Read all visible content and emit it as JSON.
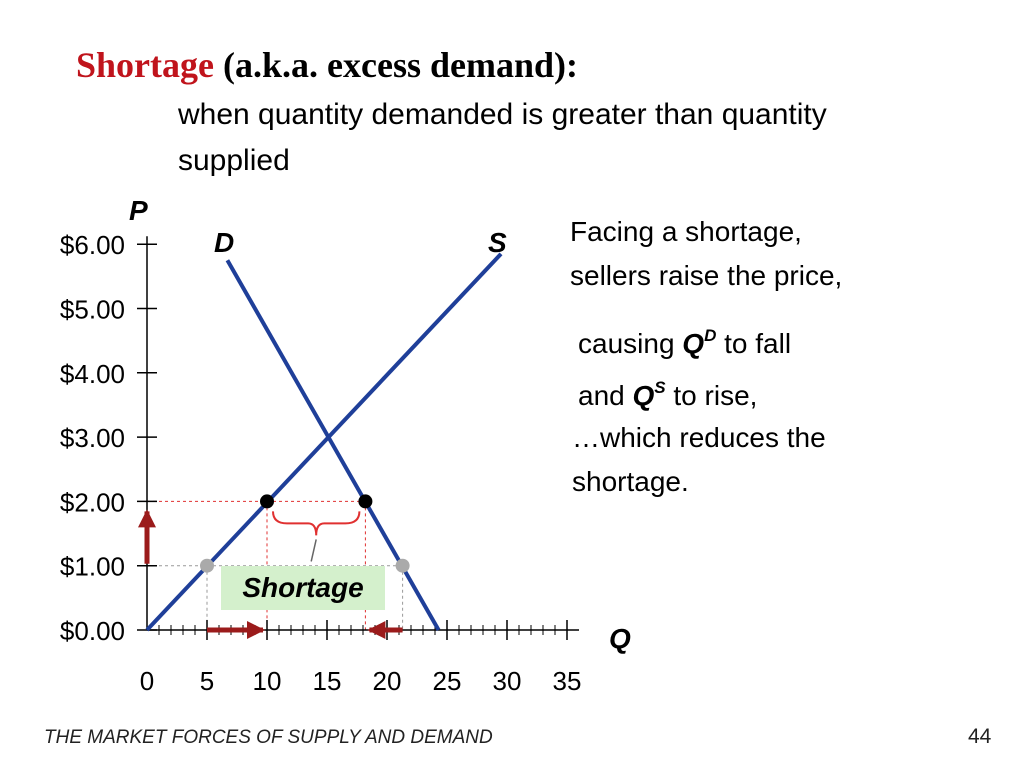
{
  "slide": {
    "title_term": "Shortage",
    "title_rest": " (a.k.a. excess demand):",
    "definition": "when quantity demanded is greater than quantity supplied",
    "text_block1": [
      "Facing a shortage,",
      "sellers raise the price,"
    ],
    "text_block2": {
      "line1_pre": "causing ",
      "line1_q": "Q",
      "line1_sup": "D",
      "line1_post": " to fall",
      "line2_pre": "and ",
      "line2_q": "Q",
      "line2_sup": "S",
      "line2_post": " to rise,"
    },
    "text_block3": [
      "…which reduces the",
      "shortage."
    ],
    "footer": "THE MARKET FORCES OF SUPPLY AND DEMAND",
    "page_number": "44"
  },
  "chart_data": {
    "type": "line",
    "ylabel": "P",
    "xlabel": "Q",
    "xlim": [
      0,
      35
    ],
    "ylim": [
      0,
      6
    ],
    "x_ticks": [
      0,
      5,
      10,
      15,
      20,
      25,
      30,
      35
    ],
    "y_ticks": [
      "$0.00",
      "$1.00",
      "$2.00",
      "$3.00",
      "$4.00",
      "$5.00",
      "$6.00"
    ],
    "series": [
      {
        "name": "D",
        "points": [
          [
            6.7,
            5.75
          ],
          [
            24.3,
            0
          ]
        ]
      },
      {
        "name": "S",
        "points": [
          [
            0,
            0
          ],
          [
            29.5,
            5.85
          ]
        ]
      }
    ],
    "points_at_price_2": [
      [
        10,
        2
      ],
      [
        18.2,
        2
      ]
    ],
    "points_at_price_1": [
      [
        5,
        1
      ],
      [
        21.3,
        1
      ]
    ],
    "annotation": "Shortage",
    "colors": {
      "curves": "#1f3f99",
      "arrows": "#9b1b1b",
      "guides": "#e03030",
      "label_bg": "#d4f0cc"
    }
  }
}
